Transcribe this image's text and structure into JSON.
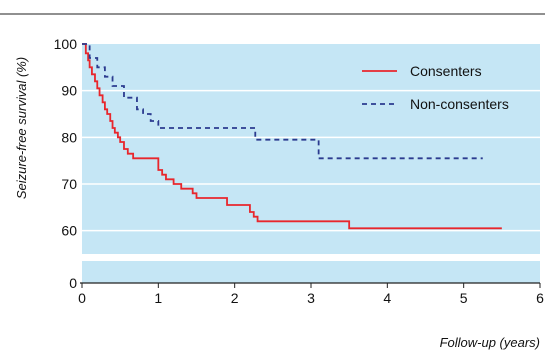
{
  "chart_data": {
    "type": "line",
    "title": "",
    "xlabel": "Follow-up (years)",
    "ylabel": "Seizure-free survival (%)",
    "xlim": [
      0,
      6
    ],
    "ylim": [
      0,
      100
    ],
    "y_axis_break": true,
    "x_ticks": [
      "0",
      "1",
      "2",
      "3",
      "4",
      "5",
      "6"
    ],
    "y_ticks": [
      "0",
      "60",
      "70",
      "80",
      "90",
      "100"
    ],
    "grid": "horizontal",
    "legend_position": "top-right",
    "background_color": "#c5e6f5",
    "series": [
      {
        "name": "Consenters",
        "color": "#e8262c",
        "style": "solid",
        "x": [
          0,
          0.05,
          0.08,
          0.1,
          0.13,
          0.17,
          0.2,
          0.23,
          0.27,
          0.3,
          0.33,
          0.37,
          0.4,
          0.43,
          0.47,
          0.5,
          0.55,
          0.6,
          0.67,
          0.75,
          1.0,
          1.05,
          1.1,
          1.2,
          1.3,
          1.45,
          1.5,
          1.9,
          2.2,
          2.25,
          2.3,
          3.5,
          5.5
        ],
        "values": [
          100,
          98,
          96.5,
          95,
          93.5,
          92,
          90.5,
          89,
          87.5,
          86,
          85,
          83.5,
          82,
          81,
          80,
          79,
          77.5,
          76.5,
          75.5,
          75.5,
          73,
          72,
          71,
          70,
          69,
          68,
          67,
          65.5,
          64,
          63,
          62,
          60.5,
          60.5
        ]
      },
      {
        "name": "Non-consenters",
        "color": "#2b3b8f",
        "style": "dashed",
        "x": [
          0,
          0.1,
          0.2,
          0.3,
          0.4,
          0.55,
          0.72,
          0.8,
          0.9,
          1.0,
          2.27,
          3.1,
          5.25
        ],
        "values": [
          100,
          97,
          95,
          93,
          91,
          88.5,
          86,
          85,
          83.5,
          82,
          79.5,
          75.5,
          75.5
        ]
      }
    ]
  }
}
